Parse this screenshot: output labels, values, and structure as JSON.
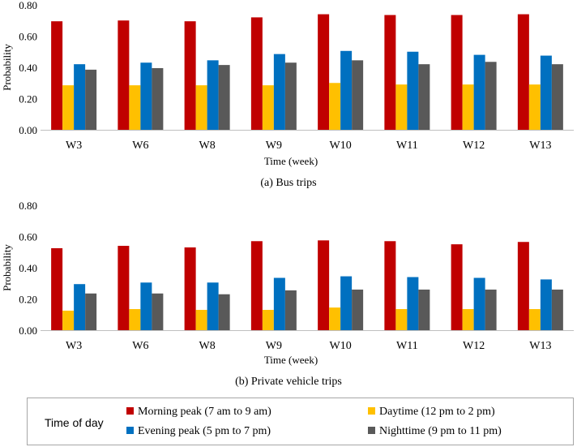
{
  "chart_data": [
    {
      "type": "bar",
      "caption": "(a) Bus trips",
      "xlabel": "Time  (week)",
      "ylabel": "Probability",
      "ylim": [
        0,
        0.8
      ],
      "yticks": [
        "0.00",
        "0.20",
        "0.40",
        "0.60",
        "0.80"
      ],
      "categories": [
        "W3",
        "W6",
        "W8",
        "W9",
        "W10",
        "W11",
        "W12",
        "W13"
      ],
      "series": [
        {
          "name": "Morning peak (7 am to 9 am)",
          "values": [
            0.695,
            0.7,
            0.695,
            0.72,
            0.74,
            0.735,
            0.735,
            0.74
          ]
        },
        {
          "name": "Daytime (12 pm to 2 pm)",
          "values": [
            0.285,
            0.285,
            0.285,
            0.285,
            0.3,
            0.29,
            0.29,
            0.29
          ]
        },
        {
          "name": "Evening peak (5 pm to 7 pm)",
          "values": [
            0.42,
            0.43,
            0.445,
            0.485,
            0.505,
            0.5,
            0.48,
            0.475
          ]
        },
        {
          "name": "Nighttime (9 pm to 11 pm)",
          "values": [
            0.385,
            0.395,
            0.415,
            0.43,
            0.445,
            0.42,
            0.435,
            0.42
          ]
        }
      ]
    },
    {
      "type": "bar",
      "caption": "(b) Private vehicle trips",
      "xlabel": "Time  (week)",
      "ylabel": "Probability",
      "ylim": [
        0,
        0.8
      ],
      "yticks": [
        "0.00",
        "0.20",
        "0.40",
        "0.60",
        "0.80"
      ],
      "categories": [
        "W3",
        "W6",
        "W8",
        "W9",
        "W10",
        "W11",
        "W12",
        "W13"
      ],
      "series": [
        {
          "name": "Morning peak (7 am to 9 am)",
          "values": [
            0.525,
            0.54,
            0.53,
            0.57,
            0.575,
            0.57,
            0.55,
            0.565
          ]
        },
        {
          "name": "Daytime (12 pm to 2 pm)",
          "values": [
            0.125,
            0.135,
            0.13,
            0.13,
            0.145,
            0.135,
            0.135,
            0.135
          ]
        },
        {
          "name": "Evening peak (5 pm to 7 pm)",
          "values": [
            0.295,
            0.305,
            0.305,
            0.335,
            0.345,
            0.34,
            0.335,
            0.325
          ]
        },
        {
          "name": "Nighttime (9 pm to 11 pm)",
          "values": [
            0.235,
            0.235,
            0.23,
            0.255,
            0.26,
            0.26,
            0.26,
            0.26
          ]
        }
      ]
    }
  ],
  "legend": {
    "title": "Time  of day",
    "items": [
      "Morning peak (7 am to 9 am)",
      "Daytime (12 pm to 2 pm)",
      "Evening peak (5 pm to 7 pm)",
      "Nighttime (9 pm to 11 pm)"
    ]
  },
  "colors": {
    "Morning peak (7 am to 9 am)": "#c00000",
    "Daytime (12 pm to 2 pm)": "#ffc000",
    "Evening peak (5 pm to 7 pm)": "#0070c0",
    "Nighttime (9 pm to 11 pm)": "#595959",
    "axis": "#bfbfbf",
    "legend_border": "#a6a6a6"
  }
}
